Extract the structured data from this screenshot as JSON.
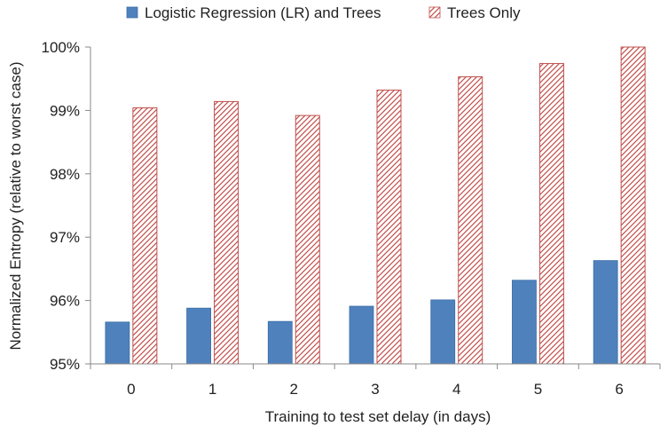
{
  "chart_data": {
    "type": "bar",
    "title": "",
    "xlabel": "Training to test set delay (in days)",
    "ylabel": "Normalized Entropy (relative to worst case)",
    "categories": [
      "0",
      "1",
      "2",
      "3",
      "4",
      "5",
      "6"
    ],
    "series": [
      {
        "name": "Logistic Regression (LR) and Trees",
        "values": [
          95.66,
          95.88,
          95.67,
          95.91,
          96.01,
          96.32,
          96.63
        ],
        "color": "#4F81BD",
        "pattern": "solid"
      },
      {
        "name": "Trees Only",
        "values": [
          99.04,
          99.14,
          98.92,
          99.32,
          99.53,
          99.74,
          100.0
        ],
        "color": "#C0504D",
        "pattern": "diagonal-hatch"
      }
    ],
    "ylim": [
      95,
      100
    ],
    "yticks": [
      95,
      96,
      97,
      98,
      99,
      100
    ],
    "ytick_labels": [
      "95%",
      "96%",
      "97%",
      "98%",
      "99%",
      "100%"
    ],
    "grid": false,
    "legend": "top-center"
  }
}
